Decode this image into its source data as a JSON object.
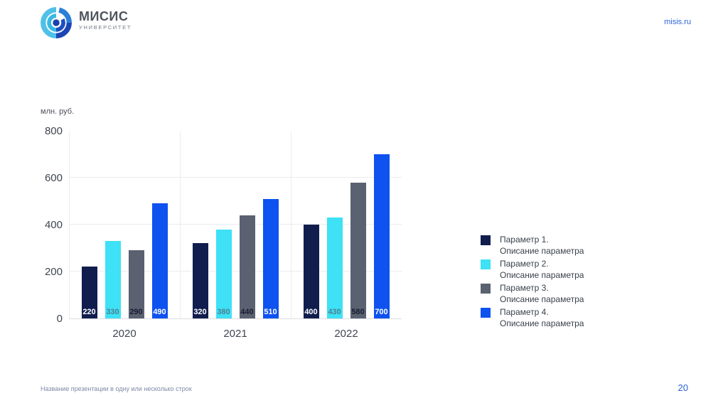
{
  "header": {
    "logo_title": "МИСИС",
    "logo_subtitle": "УНИВЕРСИТЕТ",
    "site_link": "misis.ru"
  },
  "chart_data": {
    "type": "bar",
    "title": "",
    "xlabel": "",
    "ylabel": "млн. руб.",
    "categories": [
      "2020",
      "2021",
      "2022"
    ],
    "series": [
      {
        "name": "Параметр 1.",
        "description": "Описание параметра",
        "color": "#101d4d",
        "label_color": "#ffffff",
        "values": [
          220,
          320,
          400
        ]
      },
      {
        "name": "Параметр 2.",
        "description": "Описание параметра",
        "color": "#3ee1f5",
        "label_color": "#4d8191",
        "values": [
          330,
          380,
          430
        ]
      },
      {
        "name": "Параметр 3.",
        "description": "Описание параметра",
        "color": "#5a6170",
        "label_color": "#181e33",
        "values": [
          290,
          440,
          580
        ]
      },
      {
        "name": "Параметр 4.",
        "description": "Описание параметра",
        "color": "#0e52f0",
        "label_color": "#ffffff",
        "values": [
          490,
          510,
          700
        ]
      }
    ],
    "ylim": [
      0,
      800
    ],
    "y_ticks": [
      0,
      200,
      400,
      600,
      800
    ],
    "y_gridlines": [
      200,
      400,
      600
    ],
    "grid": true,
    "legend_position": "right"
  },
  "footer": {
    "presentation_title": "Название презентации в одну или несколько строк",
    "page_number": "20"
  }
}
